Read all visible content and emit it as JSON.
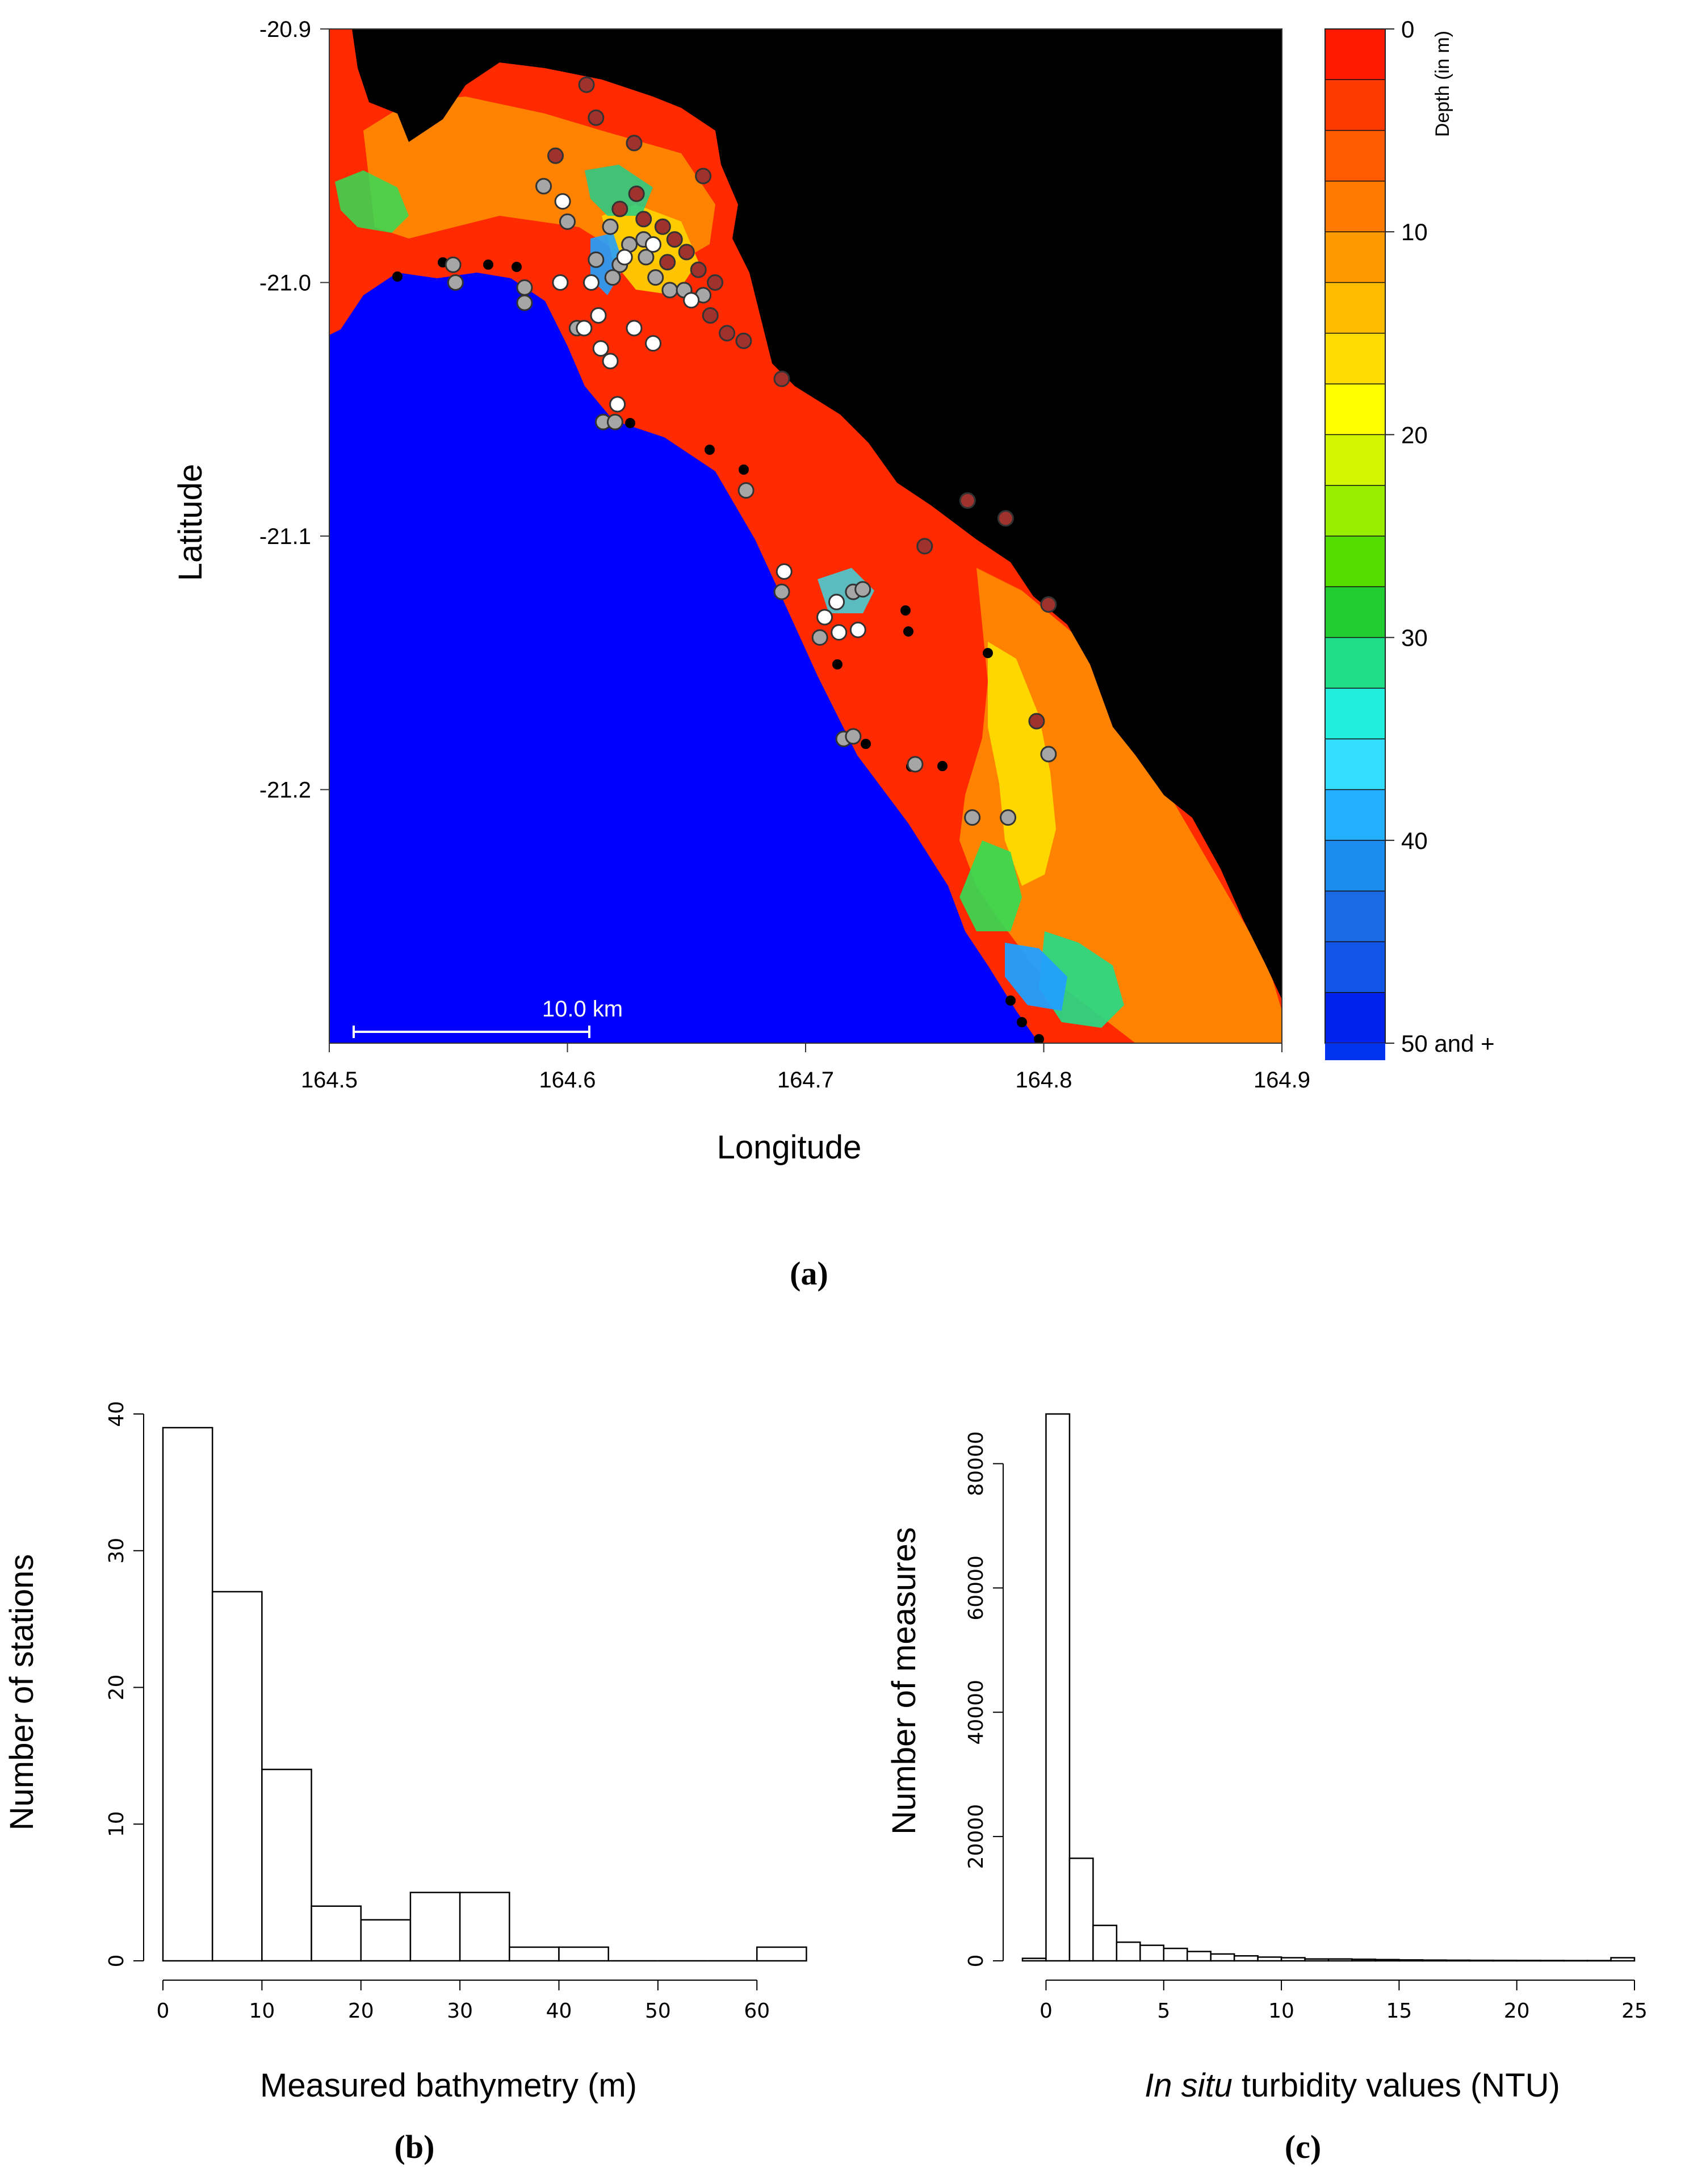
{
  "chart_data": [
    {
      "panel": "(a)",
      "type": "heatmap",
      "xlabel": "Longitude",
      "ylabel": "Latitude",
      "xlim": [
        164.5,
        164.9
      ],
      "ylim": [
        -21.3,
        -20.9
      ],
      "x_ticks": [
        "164.5",
        "164.6",
        "164.7",
        "164.8",
        "164.9"
      ],
      "y_ticks": [
        "-20.9",
        "-21.0",
        "-21.1",
        "-21.2"
      ],
      "scale_bar": "10.0 km",
      "colorbar": {
        "title": "Depth (in m)",
        "tick_labels": [
          "0",
          "10",
          "20",
          "30",
          "40",
          "50 and +"
        ],
        "tick_values": [
          0,
          10,
          20,
          30,
          40,
          50
        ],
        "colors": [
          "#ff1a00",
          "#ff3a00",
          "#ff5a00",
          "#ff7a00",
          "#ff9900",
          "#ffbb00",
          "#ffdd00",
          "#ffff00",
          "#d4f500",
          "#99ee00",
          "#55dd00",
          "#22cc33",
          "#22dd88",
          "#22eedd",
          "#33ddff",
          "#22b0ff",
          "#1a8cf0",
          "#1a6ae6",
          "#1155e6",
          "#0022ee"
        ],
        "land_color": "#000000",
        "deep_color": "#0000ff"
      },
      "station_colors": {
        "dark": "#a0322d",
        "grey": "#a6a6a6",
        "white": "#ffffff"
      },
      "stations": [
        {
          "x": 164.608,
          "y": -20.922,
          "c": "dark"
        },
        {
          "x": 164.612,
          "y": -20.935,
          "c": "dark"
        },
        {
          "x": 164.628,
          "y": -20.945,
          "c": "dark"
        },
        {
          "x": 164.595,
          "y": -20.95,
          "c": "dark"
        },
        {
          "x": 164.657,
          "y": -20.958,
          "c": "dark"
        },
        {
          "x": 164.629,
          "y": -20.965,
          "c": "dark"
        },
        {
          "x": 164.622,
          "y": -20.971,
          "c": "dark"
        },
        {
          "x": 164.632,
          "y": -20.975,
          "c": "dark"
        },
        {
          "x": 164.64,
          "y": -20.978,
          "c": "dark"
        },
        {
          "x": 164.645,
          "y": -20.983,
          "c": "dark"
        },
        {
          "x": 164.65,
          "y": -20.988,
          "c": "dark"
        },
        {
          "x": 164.642,
          "y": -20.992,
          "c": "dark"
        },
        {
          "x": 164.655,
          "y": -20.995,
          "c": "dark"
        },
        {
          "x": 164.662,
          "y": -21.0,
          "c": "dark"
        },
        {
          "x": 164.66,
          "y": -21.013,
          "c": "dark"
        },
        {
          "x": 164.667,
          "y": -21.02,
          "c": "dark"
        },
        {
          "x": 164.674,
          "y": -21.023,
          "c": "dark"
        },
        {
          "x": 164.69,
          "y": -21.038,
          "c": "dark"
        },
        {
          "x": 164.768,
          "y": -21.086,
          "c": "dark"
        },
        {
          "x": 164.784,
          "y": -21.093,
          "c": "dark"
        },
        {
          "x": 164.75,
          "y": -21.104,
          "c": "dark"
        },
        {
          "x": 164.802,
          "y": -21.127,
          "c": "dark"
        },
        {
          "x": 164.797,
          "y": -21.173,
          "c": "dark"
        },
        {
          "x": 164.59,
          "y": -20.962,
          "c": "grey"
        },
        {
          "x": 164.6,
          "y": -20.976,
          "c": "grey"
        },
        {
          "x": 164.618,
          "y": -20.978,
          "c": "grey"
        },
        {
          "x": 164.626,
          "y": -20.985,
          "c": "grey"
        },
        {
          "x": 164.632,
          "y": -20.983,
          "c": "grey"
        },
        {
          "x": 164.612,
          "y": -20.991,
          "c": "grey"
        },
        {
          "x": 164.622,
          "y": -20.993,
          "c": "grey"
        },
        {
          "x": 164.633,
          "y": -20.99,
          "c": "grey"
        },
        {
          "x": 164.619,
          "y": -20.998,
          "c": "grey"
        },
        {
          "x": 164.637,
          "y": -20.998,
          "c": "grey"
        },
        {
          "x": 164.643,
          "y": -21.003,
          "c": "grey"
        },
        {
          "x": 164.649,
          "y": -21.003,
          "c": "grey"
        },
        {
          "x": 164.657,
          "y": -21.005,
          "c": "grey"
        },
        {
          "x": 164.552,
          "y": -20.993,
          "c": "grey"
        },
        {
          "x": 164.553,
          "y": -21.0,
          "c": "grey"
        },
        {
          "x": 164.582,
          "y": -21.002,
          "c": "grey"
        },
        {
          "x": 164.582,
          "y": -21.008,
          "c": "grey"
        },
        {
          "x": 164.604,
          "y": -21.018,
          "c": "grey"
        },
        {
          "x": 164.615,
          "y": -21.055,
          "c": "grey"
        },
        {
          "x": 164.62,
          "y": -21.055,
          "c": "grey"
        },
        {
          "x": 164.675,
          "y": -21.082,
          "c": "grey"
        },
        {
          "x": 164.69,
          "y": -21.122,
          "c": "grey"
        },
        {
          "x": 164.706,
          "y": -21.14,
          "c": "grey"
        },
        {
          "x": 164.72,
          "y": -21.122,
          "c": "grey"
        },
        {
          "x": 164.724,
          "y": -21.121,
          "c": "grey"
        },
        {
          "x": 164.716,
          "y": -21.18,
          "c": "grey"
        },
        {
          "x": 164.72,
          "y": -21.179,
          "c": "grey"
        },
        {
          "x": 164.746,
          "y": -21.19,
          "c": "grey"
        },
        {
          "x": 164.77,
          "y": -21.211,
          "c": "grey"
        },
        {
          "x": 164.785,
          "y": -21.211,
          "c": "grey"
        },
        {
          "x": 164.802,
          "y": -21.186,
          "c": "grey"
        },
        {
          "x": 164.598,
          "y": -20.968,
          "c": "white"
        },
        {
          "x": 164.624,
          "y": -20.99,
          "c": "white"
        },
        {
          "x": 164.636,
          "y": -20.985,
          "c": "white"
        },
        {
          "x": 164.61,
          "y": -21.0,
          "c": "white"
        },
        {
          "x": 164.597,
          "y": -21.0,
          "c": "white"
        },
        {
          "x": 164.652,
          "y": -21.007,
          "c": "white"
        },
        {
          "x": 164.613,
          "y": -21.013,
          "c": "white"
        },
        {
          "x": 164.607,
          "y": -21.018,
          "c": "white"
        },
        {
          "x": 164.628,
          "y": -21.018,
          "c": "white"
        },
        {
          "x": 164.636,
          "y": -21.024,
          "c": "white"
        },
        {
          "x": 164.614,
          "y": -21.026,
          "c": "white"
        },
        {
          "x": 164.618,
          "y": -21.031,
          "c": "white"
        },
        {
          "x": 164.621,
          "y": -21.048,
          "c": "white"
        },
        {
          "x": 164.691,
          "y": -21.114,
          "c": "white"
        },
        {
          "x": 164.713,
          "y": -21.126,
          "c": "white"
        },
        {
          "x": 164.708,
          "y": -21.132,
          "c": "white"
        },
        {
          "x": 164.714,
          "y": -21.138,
          "c": "white"
        },
        {
          "x": 164.722,
          "y": -21.137,
          "c": "white"
        }
      ]
    },
    {
      "panel": "(b)",
      "type": "bar",
      "xlabel": "Measured bathymetry (m)",
      "ylabel": "Number of stations",
      "bin_width": 5,
      "bins": [
        [
          0,
          5
        ],
        [
          5,
          10
        ],
        [
          10,
          15
        ],
        [
          15,
          20
        ],
        [
          20,
          25
        ],
        [
          25,
          30
        ],
        [
          30,
          35
        ],
        [
          35,
          40
        ],
        [
          40,
          45
        ],
        [
          45,
          50
        ],
        [
          50,
          55
        ],
        [
          55,
          60
        ],
        [
          60,
          65
        ]
      ],
      "values": [
        39,
        27,
        14,
        4,
        3,
        5,
        5,
        1,
        1,
        0,
        0,
        0,
        1
      ],
      "xlim": [
        0,
        65
      ],
      "ylim": [
        0,
        40
      ],
      "x_ticks": [
        "0",
        "10",
        "20",
        "30",
        "40",
        "50",
        "60"
      ],
      "y_ticks": [
        "0",
        "10",
        "20",
        "30",
        "40"
      ]
    },
    {
      "panel": "(c)",
      "type": "bar",
      "xlabel_italic": "In situ",
      "xlabel_rest": " turbidity values (NTU)",
      "ylabel": "Number of measures",
      "bin_width": 1,
      "bins_start": -1,
      "values": [
        400,
        88000,
        16500,
        5700,
        3000,
        2500,
        2000,
        1500,
        1100,
        800,
        600,
        500,
        300,
        300,
        250,
        200,
        150,
        120,
        100,
        80,
        70,
        60,
        50,
        40,
        40,
        500
      ],
      "xlim": [
        -1,
        25
      ],
      "ylim": [
        0,
        88000
      ],
      "x_ticks": [
        "0",
        "5",
        "10",
        "15",
        "20",
        "25"
      ],
      "y_ticks": [
        "0",
        "20000",
        "40000",
        "60000",
        "80000"
      ]
    }
  ]
}
